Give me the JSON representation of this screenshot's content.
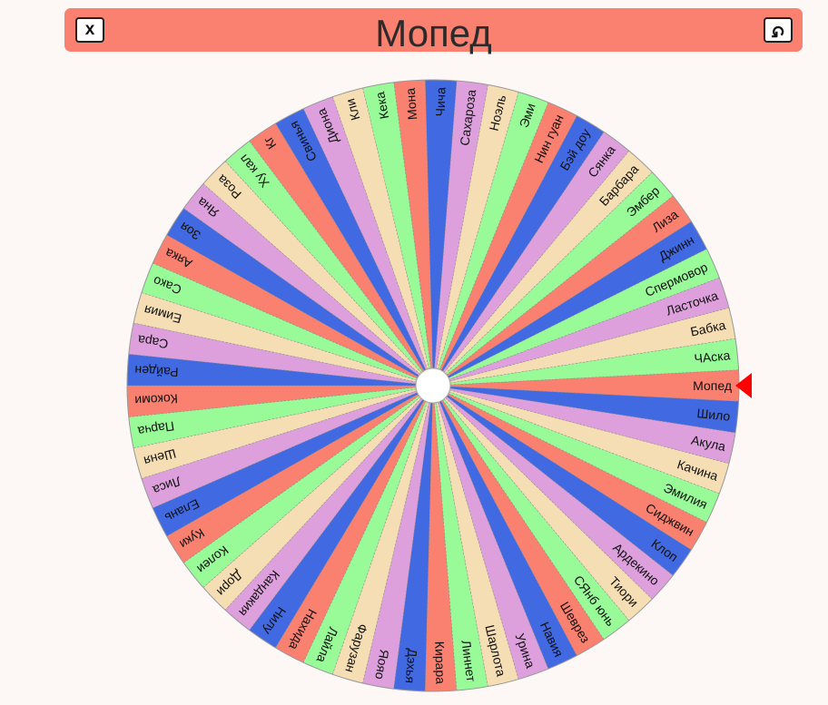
{
  "header": {
    "title": "Мопед",
    "close_label": "x",
    "undo_label": "↺"
  },
  "wheel": {
    "selected": "Мопед",
    "segments": [
      {
        "label": "Мопед",
        "color": "#fa8070"
      },
      {
        "label": "ЧАска",
        "color": "#98fb98"
      },
      {
        "label": "Бабка",
        "color": "#f5deb3"
      },
      {
        "label": "Ласточка",
        "color": "#dda0dd"
      },
      {
        "label": "Спермовор",
        "color": "#98fb98"
      },
      {
        "label": "Джинн",
        "color": "#4169e1"
      },
      {
        "label": "Лиза",
        "color": "#fa8070"
      },
      {
        "label": "Эмбер",
        "color": "#98fb98"
      },
      {
        "label": "Барбара",
        "color": "#f5deb3"
      },
      {
        "label": "Сянка",
        "color": "#dda0dd"
      },
      {
        "label": "Бэй доу",
        "color": "#4169e1"
      },
      {
        "label": "Нин гуан",
        "color": "#fa8070"
      },
      {
        "label": "Эми",
        "color": "#98fb98"
      },
      {
        "label": "Ноэль",
        "color": "#f5deb3"
      },
      {
        "label": "Сахароза",
        "color": "#dda0dd"
      },
      {
        "label": "Чича",
        "color": "#4169e1"
      },
      {
        "label": "Мона",
        "color": "#fa8070"
      },
      {
        "label": "Кека",
        "color": "#98fb98"
      },
      {
        "label": "Кли",
        "color": "#f5deb3"
      },
      {
        "label": "Диона",
        "color": "#dda0dd"
      },
      {
        "label": "Свинья",
        "color": "#4169e1"
      },
      {
        "label": "Кг",
        "color": "#fa8070"
      },
      {
        "label": "Ху кал",
        "color": "#98fb98"
      },
      {
        "label": "Роза",
        "color": "#f5deb3"
      },
      {
        "label": "Яна",
        "color": "#dda0dd"
      },
      {
        "label": "Зоя",
        "color": "#4169e1"
      },
      {
        "label": "Аяка",
        "color": "#fa8070"
      },
      {
        "label": "Сако",
        "color": "#98fb98"
      },
      {
        "label": "Еимия",
        "color": "#f5deb3"
      },
      {
        "label": "Сара",
        "color": "#dda0dd"
      },
      {
        "label": "Райден",
        "color": "#4169e1"
      },
      {
        "label": "Кокоми",
        "color": "#fa8070"
      },
      {
        "label": "Парча",
        "color": "#98fb98"
      },
      {
        "label": "Шеня",
        "color": "#f5deb3"
      },
      {
        "label": "Лиса",
        "color": "#dda0dd"
      },
      {
        "label": "Елань",
        "color": "#4169e1"
      },
      {
        "label": "Куки",
        "color": "#fa8070"
      },
      {
        "label": "Колеи",
        "color": "#98fb98"
      },
      {
        "label": "Дори",
        "color": "#f5deb3"
      },
      {
        "label": "Кандакия",
        "color": "#dda0dd"
      },
      {
        "label": "Нилу",
        "color": "#4169e1"
      },
      {
        "label": "Нахида",
        "color": "#fa8070"
      },
      {
        "label": "Лайла",
        "color": "#98fb98"
      },
      {
        "label": "Фарузан",
        "color": "#f5deb3"
      },
      {
        "label": "Яояо",
        "color": "#dda0dd"
      },
      {
        "label": "Дэхья",
        "color": "#4169e1"
      },
      {
        "label": "Кирара",
        "color": "#fa8070"
      },
      {
        "label": "Линнет",
        "color": "#98fb98"
      },
      {
        "label": "Шарлота",
        "color": "#f5deb3"
      },
      {
        "label": "Урина",
        "color": "#dda0dd"
      },
      {
        "label": "Навия",
        "color": "#4169e1"
      },
      {
        "label": "Шеврез",
        "color": "#fa8070"
      },
      {
        "label": "СЯнб юнь",
        "color": "#98fb98"
      },
      {
        "label": "Тиори",
        "color": "#f5deb3"
      },
      {
        "label": "Ардекино",
        "color": "#dda0dd"
      },
      {
        "label": "Клоп",
        "color": "#4169e1"
      },
      {
        "label": "Сиджвин",
        "color": "#fa8070"
      },
      {
        "label": "Эмилия",
        "color": "#98fb98"
      },
      {
        "label": "Качина",
        "color": "#f5deb3"
      },
      {
        "label": "Акула",
        "color": "#dda0dd"
      },
      {
        "label": "Шило",
        "color": "#4169e1"
      }
    ],
    "pointer_color": "#ff0000",
    "hub_color": "#ffffff"
  }
}
